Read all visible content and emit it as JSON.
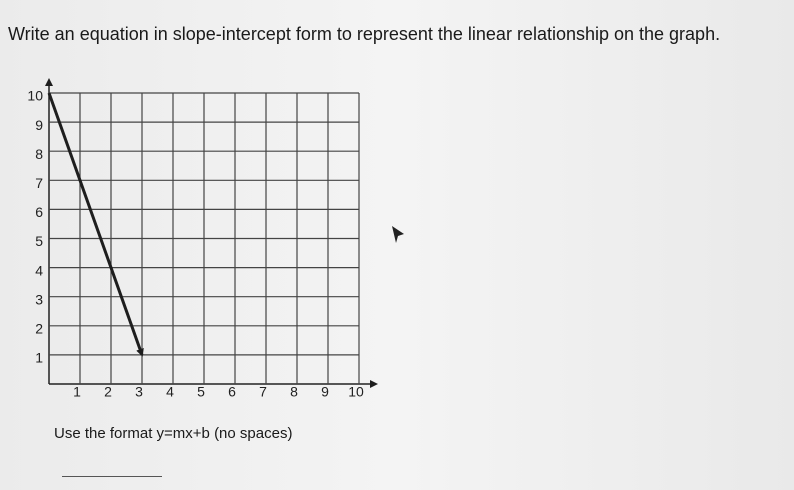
{
  "question": "Write an equation in slope-intercept form to represent the linear relationship on the graph.",
  "instruction": "Use the format y=mx+b (no spaces)",
  "chart_data": {
    "type": "line",
    "x": [
      0,
      3
    ],
    "values": [
      10,
      1
    ],
    "color": "#1e1e1e",
    "xlim": [
      0,
      10
    ],
    "ylim": [
      0,
      10
    ],
    "xticks": [
      1,
      2,
      3,
      4,
      5,
      6,
      7,
      8,
      9,
      10
    ],
    "yticks": [
      1,
      2,
      3,
      4,
      5,
      6,
      7,
      8,
      9,
      10
    ],
    "grid": true
  }
}
